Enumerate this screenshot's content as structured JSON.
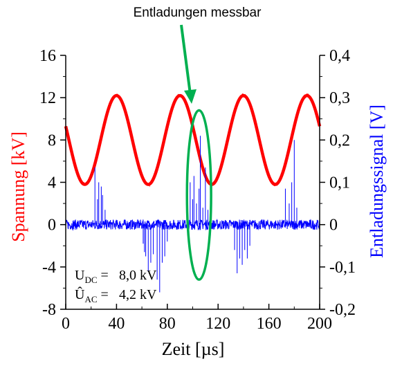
{
  "chart_data": {
    "type": "line",
    "annotation": "Entladungen messbar",
    "xlabel": "Zeit [µs]",
    "ylabel_left": "Spannung [kV]",
    "ylabel_right": "Entladungssignal [V]",
    "xlim": [
      0,
      200
    ],
    "ylim_left": [
      -8,
      16
    ],
    "ylim_right": [
      -0.2,
      0.4
    ],
    "x_ticks": [
      "0",
      "40",
      "80",
      "120",
      "160",
      "200"
    ],
    "y_ticks_left": [
      "-8",
      "-4",
      "0",
      "4",
      "8",
      "12",
      "16"
    ],
    "y_ticks_right": [
      "-0,2",
      "-0,1",
      "0",
      "0,1",
      "0,2",
      "0,3",
      "0,4"
    ],
    "params": [
      {
        "label": "U",
        "sub": "DC",
        "value": "8,0 kV"
      },
      {
        "label": "Û",
        "sub": "AC",
        "value": "4,2 kV"
      }
    ],
    "series": [
      {
        "name": "Spannung",
        "axis": "left",
        "color": "#ff0000",
        "kind": "sine",
        "offset_kv": 8.0,
        "amplitude_kv": 4.2,
        "period_us": 50,
        "peaks_us": [
          40,
          90,
          140,
          190
        ]
      },
      {
        "name": "Entladungssignal",
        "axis": "right",
        "color": "#0000ff",
        "noise_band_v": 0.012,
        "pulses": [
          {
            "x": 23,
            "v": 0.135
          },
          {
            "x": 25,
            "v": 0.06
          },
          {
            "x": 26,
            "v": 0.1
          },
          {
            "x": 28,
            "v": 0.09
          },
          {
            "x": 29,
            "v": 0.07
          },
          {
            "x": 31,
            "v": 0.035
          },
          {
            "x": 61,
            "v": -0.045
          },
          {
            "x": 62,
            "v": -0.065
          },
          {
            "x": 63,
            "v": -0.075
          },
          {
            "x": 65,
            "v": -0.11
          },
          {
            "x": 67,
            "v": -0.09
          },
          {
            "x": 69,
            "v": -0.07
          },
          {
            "x": 72,
            "v": -0.13
          },
          {
            "x": 74,
            "v": -0.16
          },
          {
            "x": 76,
            "v": -0.09
          },
          {
            "x": 78,
            "v": -0.075
          },
          {
            "x": 80,
            "v": -0.04
          },
          {
            "x": 98,
            "v": 0.1
          },
          {
            "x": 100,
            "v": 0.06
          },
          {
            "x": 101,
            "v": 0.115
          },
          {
            "x": 103,
            "v": 0.05
          },
          {
            "x": 105,
            "v": 0.085
          },
          {
            "x": 106,
            "v": 0.21
          },
          {
            "x": 108,
            "v": 0.04
          },
          {
            "x": 110,
            "v": 0.135
          },
          {
            "x": 112,
            "v": 0.035
          },
          {
            "x": 133,
            "v": -0.06
          },
          {
            "x": 135,
            "v": -0.115
          },
          {
            "x": 137,
            "v": -0.08
          },
          {
            "x": 139,
            "v": -0.095
          },
          {
            "x": 141,
            "v": -0.06
          },
          {
            "x": 143,
            "v": -0.08
          },
          {
            "x": 145,
            "v": -0.05
          },
          {
            "x": 173,
            "v": 0.085
          },
          {
            "x": 176,
            "v": 0.05
          },
          {
            "x": 178,
            "v": 0.1
          },
          {
            "x": 180,
            "v": 0.2
          },
          {
            "x": 182,
            "v": 0.04
          }
        ]
      }
    ],
    "highlight_ellipse": {
      "cx": 105,
      "cy_kv": 2.8,
      "rx": 9.5,
      "ry_kv": 8.0,
      "color": "#00b050"
    },
    "colors": {
      "axis": "#000000",
      "left_label": "#ff0000",
      "right_label": "#0000ff",
      "arrow": "#00b050"
    }
  }
}
